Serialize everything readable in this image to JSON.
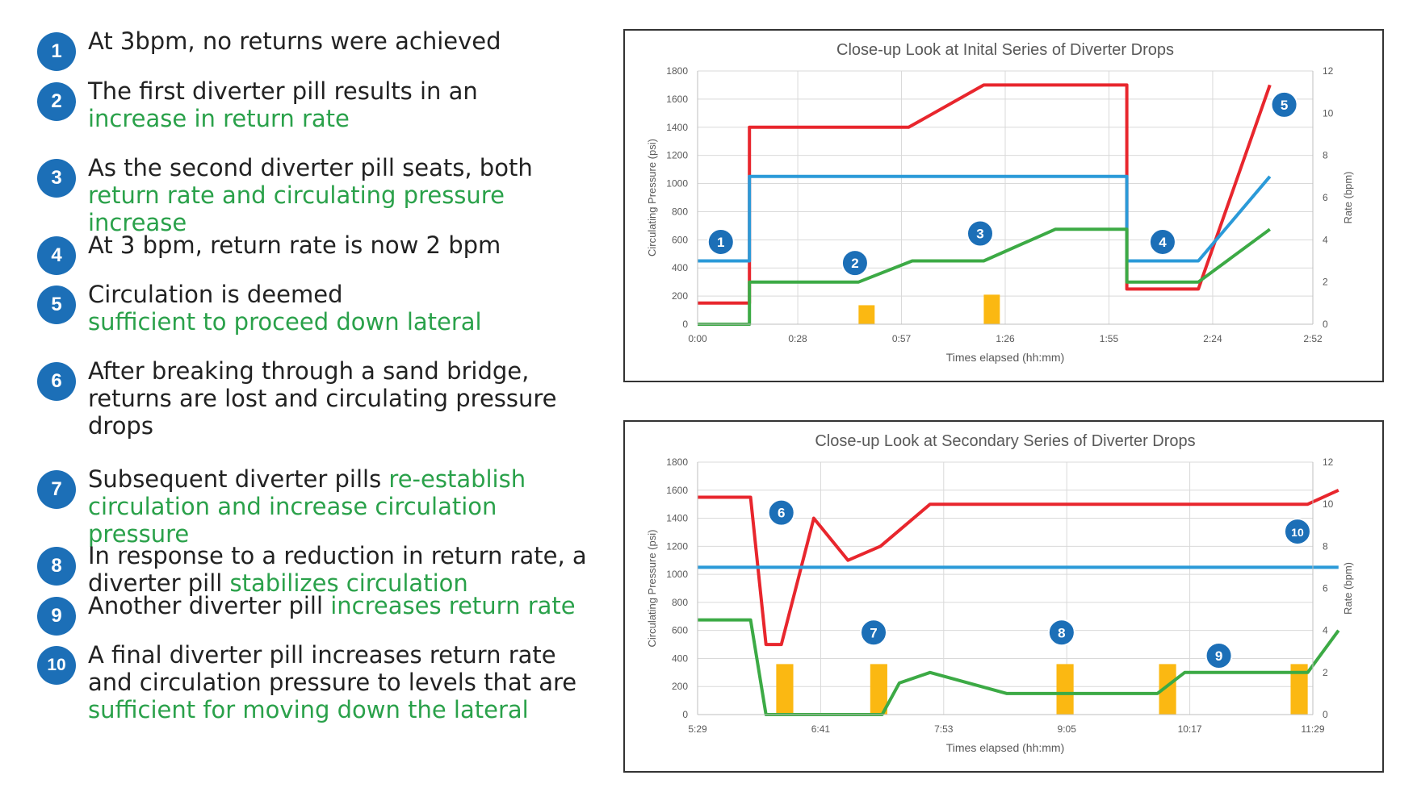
{
  "steps": [
    {
      "num": "1",
      "parts": [
        {
          "t": "At 3bpm, no returns were achieved",
          "hl": false
        }
      ]
    },
    {
      "num": "2",
      "parts": [
        {
          "t": "The first diverter pill results in an",
          "hl": false
        },
        {
          "br": true
        },
        {
          "t": "increase in return rate",
          "hl": true
        }
      ]
    },
    {
      "num": "3",
      "parts": [
        {
          "t": "As the second diverter pill seats, both",
          "hl": false
        },
        {
          "br": true
        },
        {
          "t": "return rate and circulating pressure increase",
          "hl": true
        }
      ]
    },
    {
      "num": "4",
      "parts": [
        {
          "t": "At 3 bpm, return rate is now 2 bpm",
          "hl": false
        }
      ]
    },
    {
      "num": "5",
      "parts": [
        {
          "t": "Circulation is deemed",
          "hl": false
        },
        {
          "br": true
        },
        {
          "t": "sufficient to proceed down lateral",
          "hl": true
        }
      ]
    },
    {
      "num": "6",
      "parts": [
        {
          "t": "After breaking through a sand bridge,",
          "hl": false
        },
        {
          "br": true
        },
        {
          "t": "returns are lost and circulating pressure",
          "hl": false
        },
        {
          "br": true
        },
        {
          "t": "drops",
          "hl": false
        }
      ]
    },
    {
      "num": "7",
      "parts": [
        {
          "t": "Subsequent diverter pills ",
          "hl": false
        },
        {
          "t": "re-establish",
          "hl": true
        },
        {
          "br": true
        },
        {
          "t": "circulation and increase circulation pressure",
          "hl": true
        }
      ]
    },
    {
      "num": "8",
      "parts": [
        {
          "t": "In response to a reduction in return rate, a",
          "hl": false
        },
        {
          "br": true
        },
        {
          "t": "diverter pill ",
          "hl": false
        },
        {
          "t": "stabilizes circulation",
          "hl": true
        }
      ]
    },
    {
      "num": "9",
      "parts": [
        {
          "t": "Another diverter pill ",
          "hl": false
        },
        {
          "t": "increases return rate",
          "hl": true
        }
      ]
    },
    {
      "num": "10",
      "parts": [
        {
          "t": "A final diverter pill increases return rate",
          "hl": false
        },
        {
          "br": true
        },
        {
          "t": "and circulation pressure to levels that are",
          "hl": false
        },
        {
          "br": true
        },
        {
          "t": "sufficient for moving down the lateral",
          "hl": true
        }
      ]
    }
  ],
  "colors": {
    "badge": "#1c6fb7",
    "highlight": "#2aa14a",
    "pressure": "#e8262d",
    "pump_rate": "#2b9ad8",
    "return_rate": "#3caa45",
    "pill": "#fbb812",
    "grid": "#d9d9d9"
  },
  "chart_data": [
    {
      "type": "line",
      "title": "Close-up Look at Inital Series of Diverter Drops",
      "xlabel": "Times elapsed (hh:mm)",
      "ylabel": "Circulating Pressure (psi)",
      "y2label": "Rate (bpm)",
      "xlim": [
        0,
        172
      ],
      "ylim": [
        0,
        1800
      ],
      "y2lim": [
        0,
        12
      ],
      "x_ticks": [
        "0:00",
        "0:28",
        "0:57",
        "1:26",
        "1:55",
        "2:24",
        "2:52"
      ],
      "x_tick_values": [
        0,
        28,
        57,
        86,
        115,
        144,
        172
      ],
      "y_ticks": [
        0,
        200,
        400,
        600,
        800,
        1000,
        1200,
        1400,
        1600,
        1800
      ],
      "y2_ticks": [
        0,
        2,
        4,
        6,
        8,
        10,
        12
      ],
      "grid": true,
      "series": [
        {
          "axis": "left",
          "color": "#e8262d",
          "points": [
            [
              0,
              150
            ],
            [
              14.5,
              150
            ],
            [
              14.5,
              1400
            ],
            [
              59,
              1400
            ],
            [
              80,
              1700
            ],
            [
              120,
              1700
            ],
            [
              120,
              250
            ],
            [
              140,
              250
            ],
            [
              160,
              1700
            ]
          ]
        },
        {
          "axis": "right",
          "color": "#2b9ad8",
          "points": [
            [
              0,
              3
            ],
            [
              14.5,
              3
            ],
            [
              14.5,
              7
            ],
            [
              120,
              7
            ],
            [
              120,
              3
            ],
            [
              140,
              3
            ],
            [
              160,
              7
            ]
          ]
        },
        {
          "axis": "right",
          "color": "#3caa45",
          "points": [
            [
              0,
              0
            ],
            [
              14.5,
              0
            ],
            [
              14.5,
              2
            ],
            [
              45,
              2
            ],
            [
              60,
              3
            ],
            [
              80,
              3
            ],
            [
              100,
              4.5
            ],
            [
              120,
              4.5
            ],
            [
              120,
              2
            ],
            [
              140,
              2
            ],
            [
              160,
              4.5
            ]
          ]
        }
      ],
      "pills": [
        {
          "x": 45,
          "w": 4.5,
          "y": 0.9
        },
        {
          "x": 80,
          "w": 4.5,
          "y": 1.4
        }
      ],
      "markers": [
        {
          "label": "1",
          "x": 6.5,
          "y": 3.9
        },
        {
          "label": "2",
          "x": 44,
          "y": 2.9
        },
        {
          "label": "3",
          "x": 79,
          "y": 4.3
        },
        {
          "label": "4",
          "x": 130,
          "y": 3.9
        },
        {
          "label": "5",
          "x": 164,
          "y": 10.4
        }
      ]
    },
    {
      "type": "line",
      "title": "Close-up Look at Secondary Series of Diverter Drops",
      "xlabel": "Times elapsed (hh:mm)",
      "ylabel": "Circulating Pressure (psi)",
      "y2label": "Rate (bpm)",
      "xlim": [
        329,
        689
      ],
      "ylim": [
        0,
        1800
      ],
      "y2lim": [
        0,
        12
      ],
      "x_ticks": [
        "5:29",
        "6:41",
        "7:53",
        "9:05",
        "10:17",
        "11:29"
      ],
      "x_tick_values": [
        329,
        401,
        473,
        545,
        617,
        689
      ],
      "y_ticks": [
        0,
        200,
        400,
        600,
        800,
        1000,
        1200,
        1400,
        1600,
        1800
      ],
      "y2_ticks": [
        0,
        2,
        4,
        6,
        8,
        10,
        12
      ],
      "grid": true,
      "series": [
        {
          "axis": "left",
          "color": "#e8262d",
          "points": [
            [
              329,
              1550
            ],
            [
              360,
              1550
            ],
            [
              369,
              500
            ],
            [
              378,
              500
            ],
            [
              397,
              1400
            ],
            [
              417,
              1100
            ],
            [
              436,
              1200
            ],
            [
              465,
              1500
            ],
            [
              686,
              1500
            ],
            [
              704,
              1600
            ]
          ]
        },
        {
          "axis": "right",
          "color": "#3caa45",
          "points": [
            [
              329,
              4.5
            ],
            [
              360,
              4.5
            ],
            [
              369,
              0
            ],
            [
              437,
              0
            ],
            [
              447,
              1.5
            ],
            [
              465,
              2
            ],
            [
              510,
              1
            ],
            [
              598,
              1
            ],
            [
              614,
              2
            ],
            [
              686,
              2
            ],
            [
              704,
              4
            ]
          ]
        },
        {
          "axis": "right",
          "color": "#2b9ad8",
          "points": [
            [
              329,
              7
            ],
            [
              704,
              7
            ]
          ]
        }
      ],
      "pills": [
        {
          "x": 375,
          "w": 10,
          "y": 2.4
        },
        {
          "x": 430,
          "w": 10,
          "y": 2.4
        },
        {
          "x": 539,
          "w": 10,
          "y": 2.4
        },
        {
          "x": 599,
          "w": 10,
          "y": 2.4
        },
        {
          "x": 676,
          "w": 10,
          "y": 2.4
        }
      ],
      "markers": [
        {
          "label": "6",
          "x": 378,
          "y": 9.6
        },
        {
          "label": "7",
          "x": 432,
          "y": 3.9
        },
        {
          "label": "8",
          "x": 542,
          "y": 3.9
        },
        {
          "label": "9",
          "x": 634,
          "y": 2.8
        },
        {
          "label": "10",
          "x": 680,
          "y": 8.7
        }
      ]
    }
  ]
}
